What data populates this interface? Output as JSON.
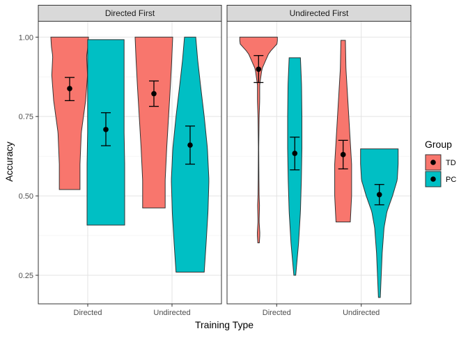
{
  "chart_data": {
    "type": "violin",
    "xlabel": "Training Type",
    "ylabel": "Accuracy",
    "ylim": [
      0.16,
      1.05
    ],
    "yticks": [
      "0.25",
      "0.50",
      "0.75",
      "1.00"
    ],
    "ytick_values": [
      0.25,
      0.5,
      0.75,
      1.0
    ],
    "categories": [
      "Directed",
      "Undirected"
    ],
    "grid": true,
    "legend": {
      "title": "Group",
      "placement": "right",
      "items": [
        {
          "label": "TD",
          "color": "#F8766D"
        },
        {
          "label": "PC",
          "color": "#00BFC4"
        }
      ]
    },
    "facets": [
      {
        "title": "Directed First",
        "groups": [
          {
            "category": "Directed",
            "group": "TD",
            "min": 0.52,
            "max": 1.0,
            "mean": 0.838,
            "ci": [
              0.8,
              0.873
            ],
            "profile": [
              [
                0.52,
                0.55
              ],
              [
                0.6,
                0.55
              ],
              [
                0.7,
                0.62
              ],
              [
                0.8,
                0.85
              ],
              [
                0.88,
                0.95
              ],
              [
                0.94,
                0.9
              ],
              [
                0.97,
                0.97
              ],
              [
                1.0,
                1.0
              ]
            ]
          },
          {
            "category": "Directed",
            "group": "PC",
            "min": 0.408,
            "max": 0.992,
            "mean": 0.709,
            "ci": [
              0.658,
              0.762
            ],
            "profile": [
              [
                0.408,
                1.0
              ],
              [
                0.5,
                1.0
              ],
              [
                0.6,
                1.0
              ],
              [
                0.7,
                0.97
              ],
              [
                0.8,
                0.97
              ],
              [
                0.9,
                0.97
              ],
              [
                0.992,
                0.97
              ]
            ]
          },
          {
            "category": "Undirected",
            "group": "TD",
            "min": 0.462,
            "max": 1.0,
            "mean": 0.822,
            "ci": [
              0.782,
              0.862
            ],
            "profile": [
              [
                0.462,
                0.6
              ],
              [
                0.55,
                0.6
              ],
              [
                0.65,
                0.68
              ],
              [
                0.75,
                0.78
              ],
              [
                0.85,
                0.88
              ],
              [
                0.93,
                0.95
              ],
              [
                1.0,
                1.0
              ]
            ]
          },
          {
            "category": "Undirected",
            "group": "PC",
            "min": 0.26,
            "max": 1.0,
            "mean": 0.66,
            "ci": [
              0.6,
              0.72
            ],
            "profile": [
              [
                0.26,
                0.75
              ],
              [
                0.35,
                0.85
              ],
              [
                0.45,
                0.95
              ],
              [
                0.55,
                1.0
              ],
              [
                0.65,
                0.92
              ],
              [
                0.75,
                0.75
              ],
              [
                0.85,
                0.55
              ],
              [
                0.93,
                0.4
              ],
              [
                1.0,
                0.3
              ]
            ]
          }
        ]
      },
      {
        "title": "Undirected First",
        "groups": [
          {
            "category": "Directed",
            "group": "TD",
            "min": 0.352,
            "max": 1.0,
            "mean": 0.899,
            "ci": [
              0.857,
              0.942
            ],
            "profile": [
              [
                0.352,
                0.04
              ],
              [
                0.38,
                0.07
              ],
              [
                0.42,
                0.03
              ],
              [
                0.47,
                0.05
              ],
              [
                0.5,
                0.03
              ],
              [
                0.55,
                0.02
              ],
              [
                0.65,
                0.01
              ],
              [
                0.75,
                0.03
              ],
              [
                0.8,
                0.06
              ],
              [
                0.85,
                0.06
              ],
              [
                0.9,
                0.18
              ],
              [
                0.95,
                0.55
              ],
              [
                0.98,
                1.0
              ],
              [
                1.0,
                1.0
              ]
            ]
          },
          {
            "category": "Directed",
            "group": "PC",
            "min": 0.25,
            "max": 0.935,
            "mean": 0.634,
            "ci": [
              0.582,
              0.685
            ],
            "profile": [
              [
                0.25,
                0.05
              ],
              [
                0.35,
                0.2
              ],
              [
                0.45,
                0.3
              ],
              [
                0.55,
                0.35
              ],
              [
                0.65,
                0.38
              ],
              [
                0.75,
                0.38
              ],
              [
                0.85,
                0.36
              ],
              [
                0.935,
                0.3
              ]
            ]
          },
          {
            "category": "Undirected",
            "group": "TD",
            "min": 0.418,
            "max": 0.99,
            "mean": 0.63,
            "ci": [
              0.585,
              0.675
            ],
            "profile": [
              [
                0.418,
                0.38
              ],
              [
                0.5,
                0.45
              ],
              [
                0.6,
                0.45
              ],
              [
                0.7,
                0.35
              ],
              [
                0.8,
                0.25
              ],
              [
                0.9,
                0.15
              ],
              [
                0.99,
                0.12
              ]
            ]
          },
          {
            "category": "Undirected",
            "group": "PC",
            "min": 0.18,
            "max": 0.648,
            "mean": 0.504,
            "ci": [
              0.472,
              0.536
            ],
            "profile": [
              [
                0.18,
                0.05
              ],
              [
                0.25,
                0.1
              ],
              [
                0.32,
                0.15
              ],
              [
                0.4,
                0.25
              ],
              [
                0.45,
                0.4
              ],
              [
                0.5,
                0.7
              ],
              [
                0.55,
                0.95
              ],
              [
                0.6,
                1.0
              ],
              [
                0.648,
                1.0
              ]
            ]
          }
        ]
      }
    ]
  }
}
